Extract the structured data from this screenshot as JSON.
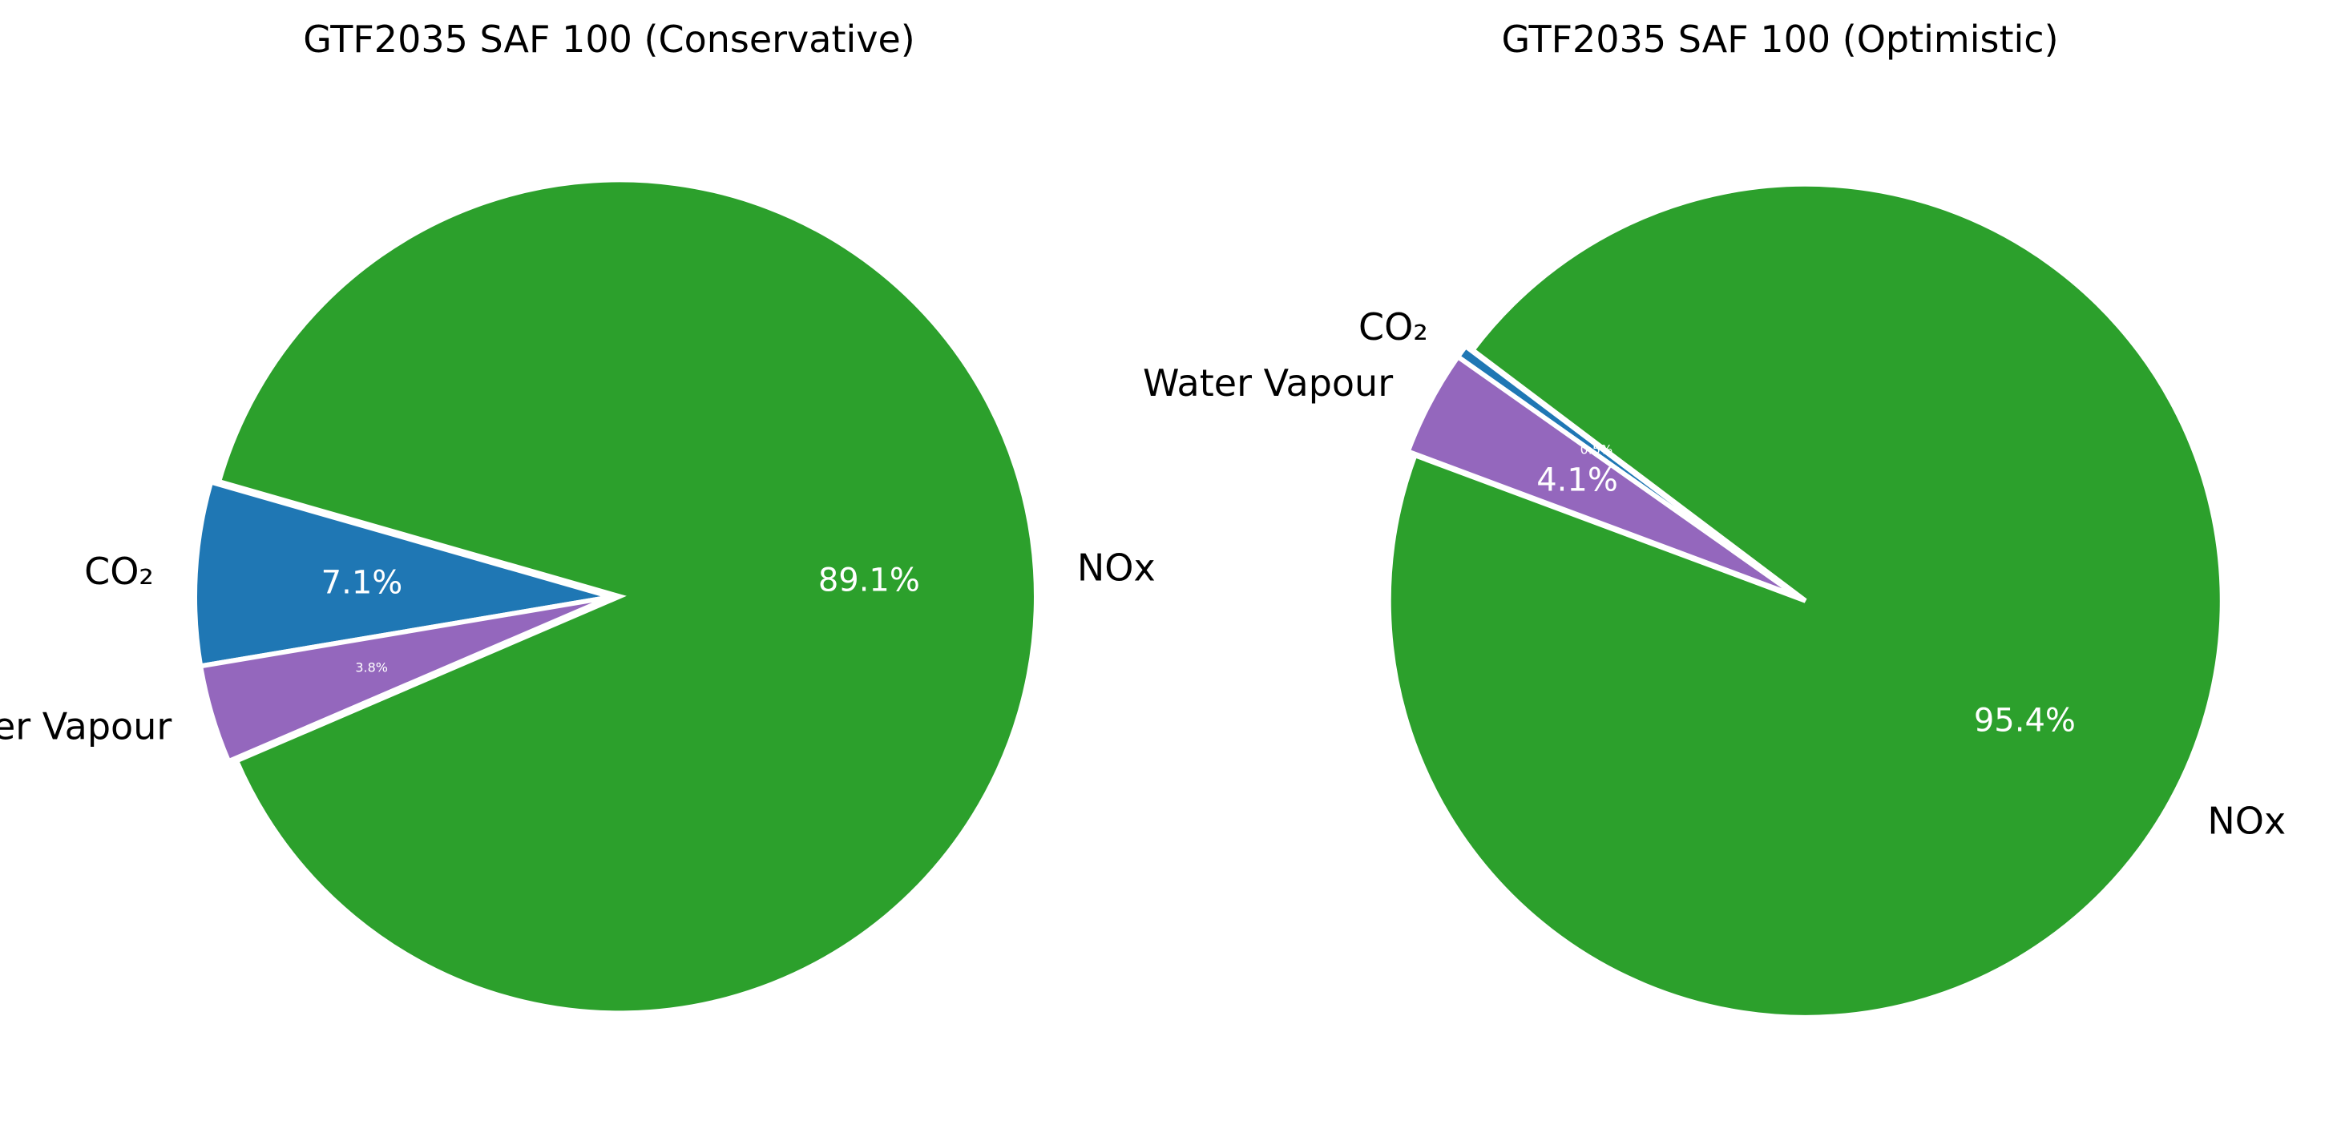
{
  "chart_data": [
    {
      "type": "pie",
      "title": "GTF2035 SAF 100 (Conservative)",
      "categories": [
        "CO₂",
        "Water Vapour",
        "NOx"
      ],
      "values": [
        7.1,
        3.8,
        89.1
      ],
      "value_labels": [
        "7.1%",
        "3.8%",
        "89.1%"
      ],
      "colors": [
        "#1f77b4",
        "#9467bd",
        "#2ca02c"
      ],
      "start_angle_deg": 164,
      "direction": "counterclockwise",
      "slice_edge_color": "#ffffff"
    },
    {
      "type": "pie",
      "title": "GTF2035 SAF 100 (Optimistic)",
      "categories": [
        "CO₂",
        "Water Vapour",
        "NOx"
      ],
      "values": [
        0.5,
        4.1,
        95.4
      ],
      "value_labels": [
        "0.5%",
        "4.1%",
        "95.4%"
      ],
      "colors": [
        "#1f77b4",
        "#9467bd",
        "#2ca02c"
      ],
      "start_angle_deg": 143,
      "direction": "counterclockwise",
      "slice_edge_color": "#ffffff"
    }
  ]
}
